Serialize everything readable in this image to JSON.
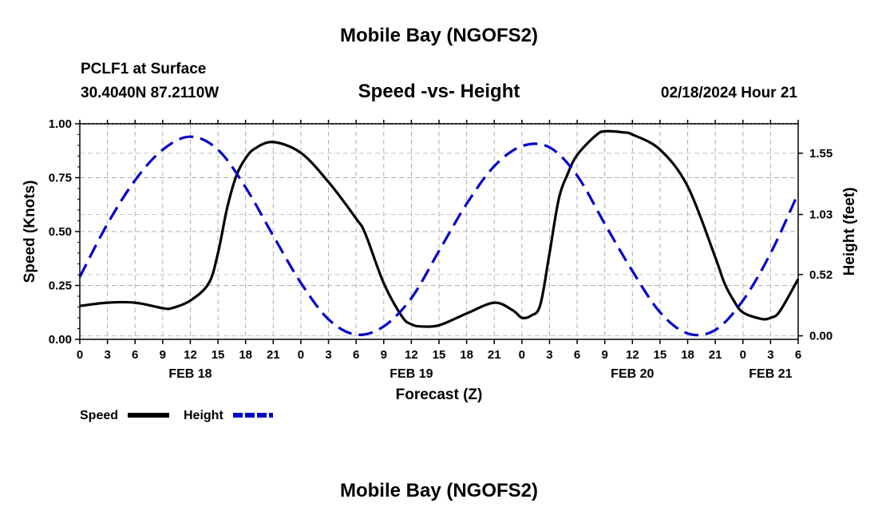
{
  "header": {
    "title_top": "Mobile Bay (NGOFS2)",
    "station": "PCLF1 at Surface",
    "location": "30.4040N  87.2110W",
    "plot_title": "Speed -vs- Height",
    "datetime": "02/18/2024 Hour 21",
    "title_bottom": "Mobile Bay (NGOFS2)"
  },
  "chart_data": {
    "type": "line",
    "title": "Speed -vs- Height",
    "xlabel": "Forecast (Z)",
    "ylabel_left": "Speed (Knots)",
    "ylabel_right": "Height (feet)",
    "x_unit": "hours since FEB 18 00Z",
    "x_range": [
      0,
      78
    ],
    "x_ticks": [
      0,
      3,
      6,
      9,
      12,
      15,
      18,
      21,
      24,
      27,
      30,
      33,
      36,
      39,
      42,
      45,
      48,
      51,
      54,
      57,
      60,
      63,
      66,
      69,
      72,
      75,
      78
    ],
    "x_tick_labels": [
      "0",
      "3",
      "6",
      "9",
      "12",
      "15",
      "18",
      "21",
      "0",
      "3",
      "6",
      "9",
      "12",
      "15",
      "18",
      "21",
      "0",
      "3",
      "6",
      "9",
      "12",
      "15",
      "18",
      "21",
      "0",
      "3",
      "6"
    ],
    "date_labels": [
      {
        "label": "FEB 18",
        "x": 12
      },
      {
        "label": "FEB 19",
        "x": 36
      },
      {
        "label": "FEB 20",
        "x": 60
      },
      {
        "label": "FEB 21",
        "x": 75
      }
    ],
    "y_left_range": [
      0,
      1
    ],
    "y_left_ticks": [
      0,
      0.25,
      0.5,
      0.75,
      1
    ],
    "y_left_tick_labels": [
      "0.00",
      "0.25",
      "0.50",
      "0.75",
      "1.00"
    ],
    "y_right_range": [
      -0.03,
      1.8
    ],
    "y_right_ticks": [
      0,
      0.52,
      1.03,
      1.55
    ],
    "y_right_tick_labels": [
      "0.00",
      "0.52",
      "1.03",
      "1.55"
    ],
    "grid": true,
    "series": [
      {
        "name": "Speed",
        "axis": "left",
        "color": "#000000",
        "style": "solid",
        "x": [
          0,
          3,
          6,
          9,
          10,
          12,
          14,
          15,
          16,
          17,
          18,
          19,
          21,
          24,
          27,
          30,
          31,
          33,
          35,
          36,
          37,
          39,
          42,
          45,
          47,
          48,
          49,
          50,
          51,
          52,
          53,
          54,
          56,
          57,
          59,
          60,
          63,
          66,
          69,
          70,
          71,
          72,
          74,
          75,
          76,
          78
        ],
        "y": [
          0.155,
          0.17,
          0.17,
          0.145,
          0.145,
          0.18,
          0.26,
          0.4,
          0.61,
          0.76,
          0.84,
          0.885,
          0.915,
          0.865,
          0.73,
          0.56,
          0.49,
          0.26,
          0.105,
          0.07,
          0.06,
          0.065,
          0.12,
          0.17,
          0.135,
          0.1,
          0.11,
          0.16,
          0.4,
          0.65,
          0.77,
          0.855,
          0.945,
          0.965,
          0.96,
          0.95,
          0.88,
          0.71,
          0.38,
          0.26,
          0.18,
          0.125,
          0.095,
          0.1,
          0.13,
          0.28
        ]
      },
      {
        "name": "Height",
        "axis": "right",
        "color": "#0000cc",
        "style": "dashed",
        "x": [
          0,
          3,
          6,
          9,
          12,
          15,
          18,
          21,
          24,
          27,
          30,
          33,
          36,
          39,
          42,
          45,
          48,
          51,
          54,
          57,
          60,
          63,
          66,
          69,
          72,
          75,
          78
        ],
        "y": [
          0.5,
          0.95,
          1.32,
          1.58,
          1.69,
          1.58,
          1.26,
          0.85,
          0.45,
          0.14,
          0.01,
          0.08,
          0.32,
          0.72,
          1.12,
          1.44,
          1.61,
          1.6,
          1.36,
          0.95,
          0.55,
          0.2,
          0.02,
          0.05,
          0.3,
          0.7,
          1.21
        ]
      }
    ],
    "legend": [
      {
        "label": "Speed",
        "color": "#000000",
        "style": "solid"
      },
      {
        "label": "Height",
        "color": "#0000cc",
        "style": "dashed"
      }
    ]
  }
}
